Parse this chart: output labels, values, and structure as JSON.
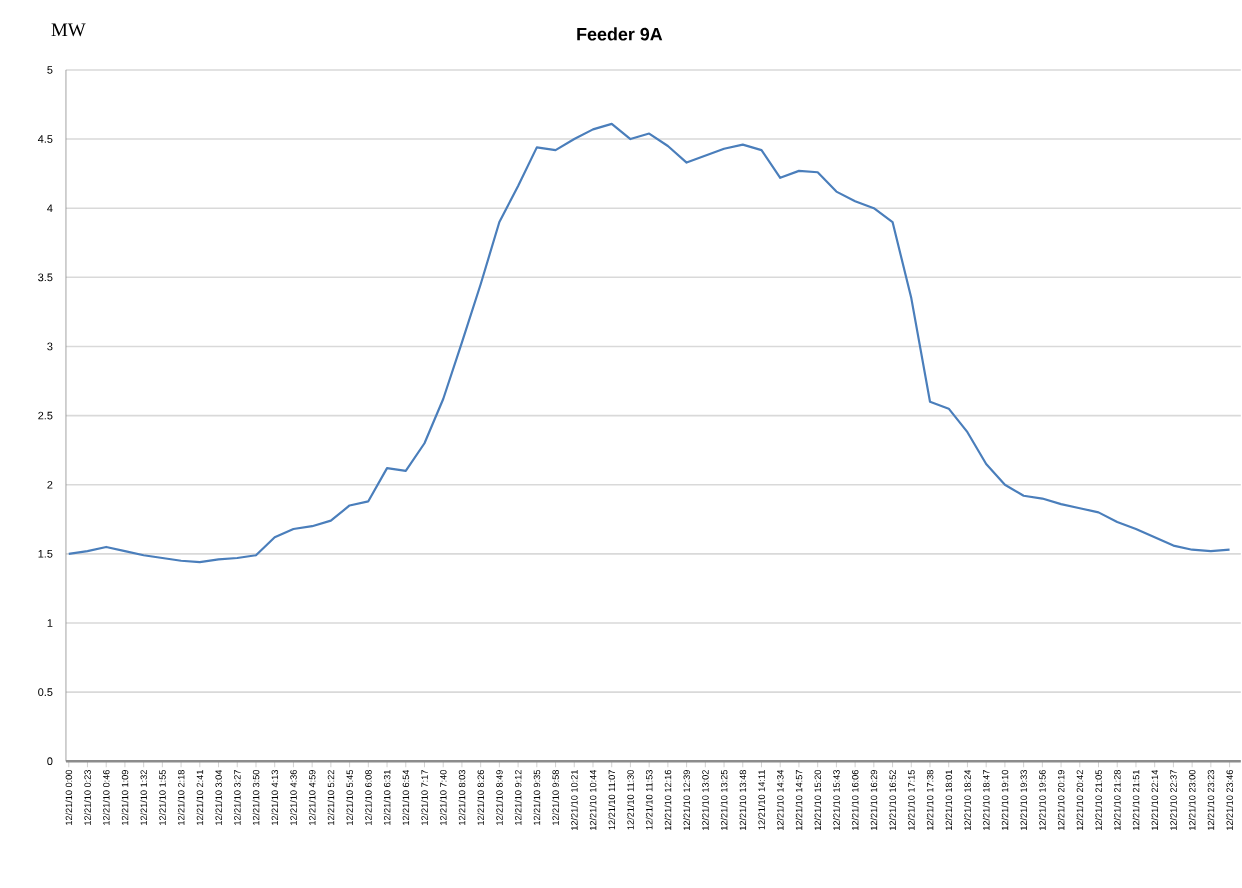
{
  "chart_data": {
    "type": "line",
    "title": "Feeder 9A",
    "ylabel": "MW",
    "categories": [
      "12/21/10 0:00",
      "12/21/10 0:23",
      "12/21/10 0:46",
      "12/21/10 1:09",
      "12/21/10 1:32",
      "12/21/10 1:55",
      "12/21/10 2:18",
      "12/21/10 2:41",
      "12/21/10 3:04",
      "12/21/10 3:27",
      "12/21/10 3:50",
      "12/21/10 4:13",
      "12/21/10 4:36",
      "12/21/10 4:59",
      "12/21/10 5:22",
      "12/21/10 5:45",
      "12/21/10 6:08",
      "12/21/10 6:31",
      "12/21/10 6:54",
      "12/21/10 7:17",
      "12/21/10 7:40",
      "12/21/10 8:03",
      "12/21/10 8:26",
      "12/21/10 8:49",
      "12/21/10 9:12",
      "12/21/10 9:35",
      "12/21/10 9:58",
      "12/21/10 10:21",
      "12/21/10 10:44",
      "12/21/10 11:07",
      "12/21/10 11:30",
      "12/21/10 11:53",
      "12/21/10 12:16",
      "12/21/10 12:39",
      "12/21/10 13:02",
      "12/21/10 13:25",
      "12/21/10 13:48",
      "12/21/10 14:11",
      "12/21/10 14:34",
      "12/21/10 14:57",
      "12/21/10 15:20",
      "12/21/10 15:43",
      "12/21/10 16:06",
      "12/21/10 16:29",
      "12/21/10 16:52",
      "12/21/10 17:15",
      "12/21/10 17:38",
      "12/21/10 18:01",
      "12/21/10 18:24",
      "12/21/10 18:47",
      "12/21/10 19:10",
      "12/21/10 19:33",
      "12/21/10 19:56",
      "12/21/10 20:19",
      "12/21/10 20:42",
      "12/21/10 21:05",
      "12/21/10 21:28",
      "12/21/10 21:51",
      "12/21/10 22:14",
      "12/21/10 22:37",
      "12/21/10 23:00",
      "12/21/10 23:23",
      "12/21/10 23:46"
    ],
    "series": [
      {
        "color": "#4a7ebb",
        "values": [
          1.5,
          1.52,
          1.55,
          1.52,
          1.49,
          1.47,
          1.45,
          1.44,
          1.46,
          1.47,
          1.49,
          1.62,
          1.68,
          1.7,
          1.74,
          1.85,
          1.88,
          2.12,
          2.1,
          2.3,
          2.62,
          3.03,
          3.45,
          3.9,
          4.16,
          4.44,
          4.42,
          4.5,
          4.57,
          4.61,
          4.5,
          4.54,
          4.45,
          4.33,
          4.38,
          4.43,
          4.46,
          4.42,
          4.22,
          4.27,
          4.26,
          4.12,
          4.05,
          4.0,
          3.9,
          3.35,
          2.6,
          2.55,
          2.38,
          2.15,
          2.0,
          1.92,
          1.9,
          1.86,
          1.83,
          1.8,
          1.73,
          1.68,
          1.62,
          1.56,
          1.53,
          1.52,
          1.53
        ]
      }
    ],
    "ylim": [
      0,
      5
    ],
    "yticks": [
      0,
      0.5,
      1,
      1.5,
      2,
      2.5,
      3,
      3.5,
      4,
      4.5,
      5
    ],
    "grid": "y",
    "marker": "none",
    "line_style": "solid"
  }
}
